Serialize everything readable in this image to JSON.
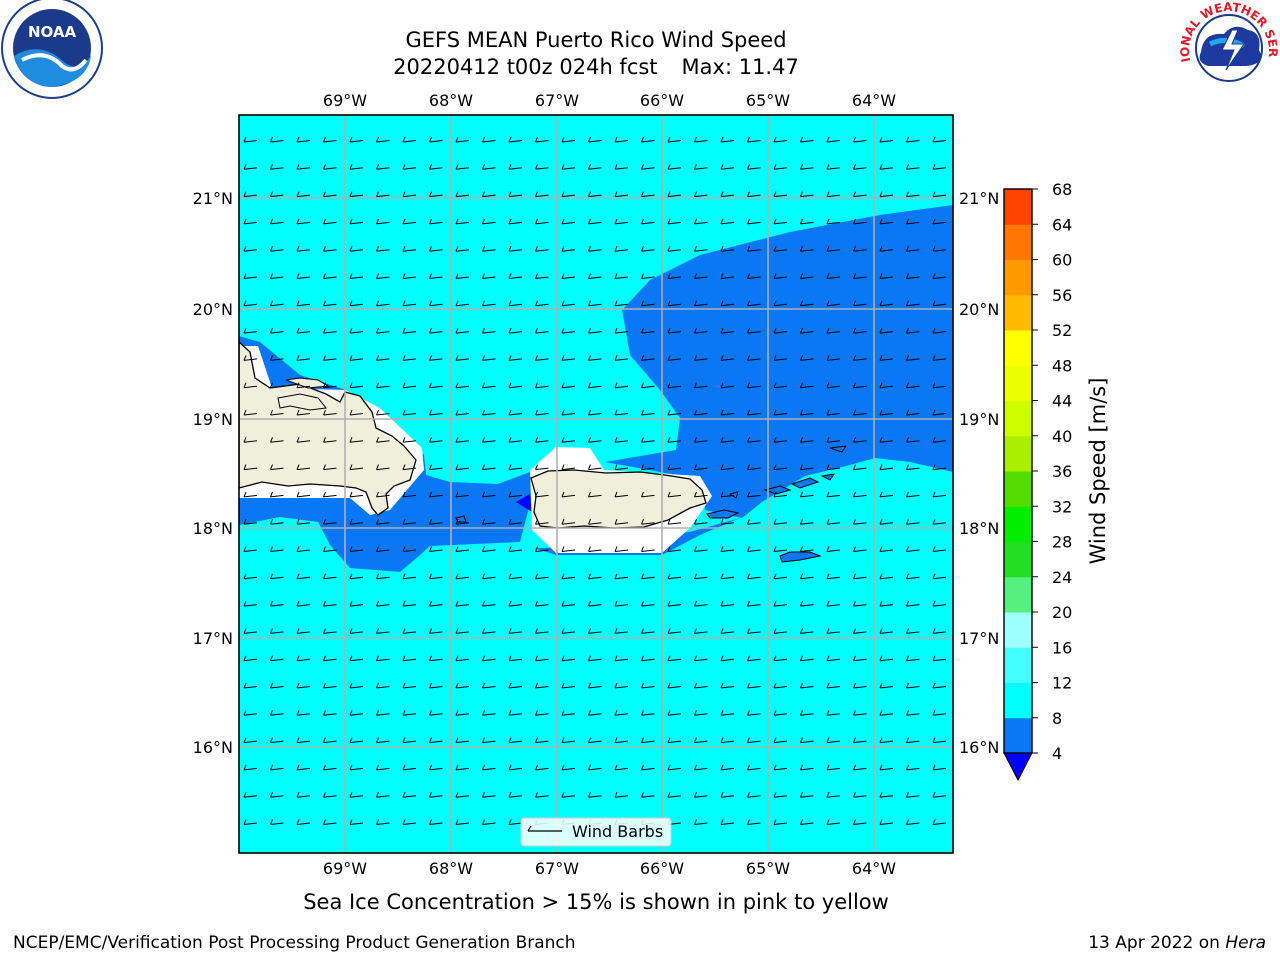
{
  "title_line1": "GEFS MEAN Puerto Rico Wind Speed",
  "title_run": "20220412 t00z 024h fcst",
  "title_max": "Max: 11.47",
  "subtitle": "Sea Ice Concentration > 15% is shown in pink to yellow",
  "footer_left": "NCEP/EMC/Verification Post Processing Product Generation Branch",
  "footer_date": "13 Apr 2022 on",
  "footer_host": "Hera",
  "legend_label": "Wind Barbs",
  "colorbar": {
    "label": "Wind Speed [m/s]",
    "ticks": [
      "4",
      "8",
      "12",
      "16",
      "20",
      "24",
      "28",
      "32",
      "36",
      "40",
      "44",
      "48",
      "52",
      "56",
      "60",
      "64",
      "68"
    ],
    "colors": [
      "#0a77f7",
      "#00ffff",
      "#44ffff",
      "#9fffff",
      "#55f07d",
      "#22dd22",
      "#00ee00",
      "#55dd00",
      "#aaee00",
      "#ccff00",
      "#eeff00",
      "#ffff00",
      "#ffbb00",
      "#ff9900",
      "#ff7700",
      "#ff4400",
      "#ff0000"
    ],
    "under_color": "#0000ff"
  },
  "axes": {
    "lon_labels": [
      "69°W",
      "68°W",
      "67°W",
      "66°W",
      "65°W",
      "64°W"
    ],
    "lat_labels": [
      "21°N",
      "20°N",
      "19°N",
      "18°N",
      "17°N",
      "16°N"
    ]
  },
  "colors": {
    "ocean_fast": "#00ffff",
    "ocean_slow": "#0a77f7",
    "land": "#efefdc",
    "grid": "#b0b0b0"
  },
  "logos": {
    "noaa_text": "NOAA",
    "nws_text": "NATIONAL WEATHER SERVICE"
  }
}
